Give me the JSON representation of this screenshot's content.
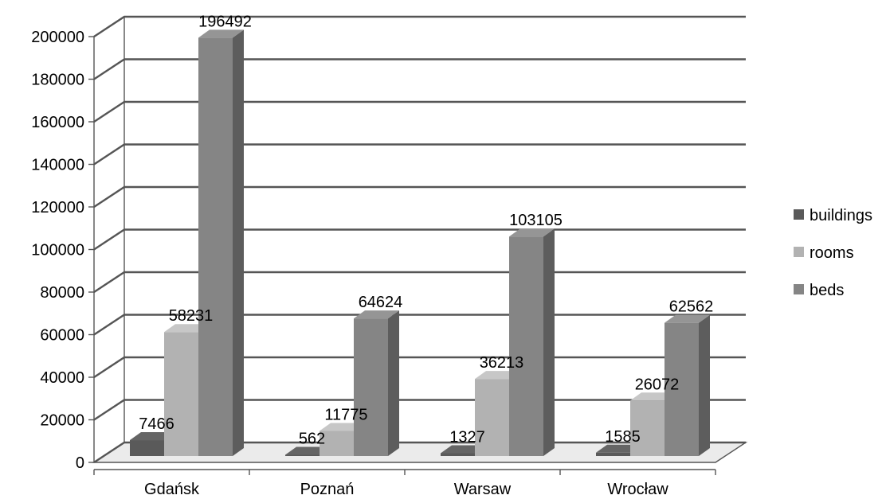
{
  "chart_data": {
    "type": "bar",
    "categories": [
      "Gdańsk",
      "Poznań",
      "Warsaw",
      "Wrocław"
    ],
    "series": [
      {
        "name": "buildings",
        "values": [
          7466,
          562,
          1327,
          1585
        ]
      },
      {
        "name": "rooms",
        "values": [
          58231,
          11775,
          36213,
          26072
        ]
      },
      {
        "name": "beds",
        "values": [
          196492,
          64624,
          103105,
          62562
        ]
      }
    ],
    "ylim": [
      0,
      200000
    ],
    "y_ticks": [
      "0",
      "20000",
      "40000",
      "60000",
      "80000",
      "100000",
      "120000",
      "140000",
      "160000",
      "180000",
      "200000"
    ],
    "grid": true,
    "legend_position": "right",
    "style": "3d-clustered-column",
    "colors": {
      "buildings": "#5a5a5a",
      "rooms": "#b2b2b2",
      "beds": "#858585"
    }
  }
}
